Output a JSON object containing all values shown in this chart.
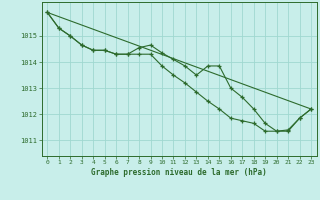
{
  "title": "Graphe pression niveau de la mer (hPa)",
  "background_color": "#c8eeea",
  "grid_color": "#a0d8d0",
  "line_color": "#2d6b2d",
  "xlim": [
    -0.5,
    23.5
  ],
  "ylim": [
    1010.4,
    1016.3
  ],
  "yticks": [
    1011,
    1012,
    1013,
    1014,
    1015
  ],
  "xticks": [
    0,
    1,
    2,
    3,
    4,
    5,
    6,
    7,
    8,
    9,
    10,
    11,
    12,
    13,
    14,
    15,
    16,
    17,
    18,
    19,
    20,
    21,
    22,
    23
  ],
  "series1": [
    1015.9,
    1015.3,
    1015.0,
    1014.65,
    1014.45,
    1014.45,
    1014.3,
    1014.3,
    1014.55,
    1014.65,
    1014.35,
    1014.1,
    1013.85,
    1013.5,
    1013.85,
    1013.85,
    1013.0,
    1012.65,
    1012.2,
    1011.65,
    1011.35,
    1011.35,
    1011.85,
    1012.2
  ],
  "series2": [
    1015.9,
    1015.3,
    1015.0,
    1014.65,
    1014.45,
    1014.45,
    1014.3,
    1014.3,
    1014.3,
    1014.3,
    1013.85,
    1013.5,
    1013.2,
    1012.85,
    1012.5,
    1012.2,
    1011.85,
    1011.75,
    1011.65,
    1011.35,
    1011.35,
    1011.4,
    1011.85,
    1012.2
  ],
  "series3_x": [
    0,
    23
  ],
  "series3_y": [
    1015.9,
    1012.2
  ],
  "xlabel_color": "#1a5e1a",
  "spine_color": "#2d6b2d"
}
